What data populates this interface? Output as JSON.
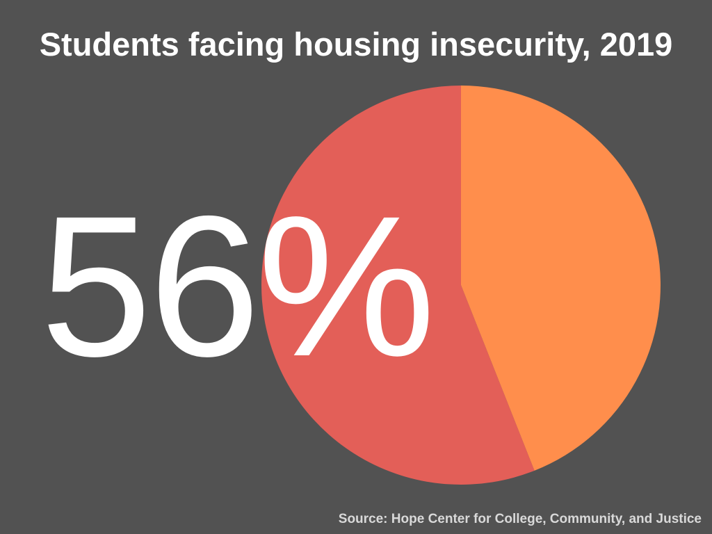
{
  "chart_data": {
    "type": "pie",
    "title": "Students facing housing insecurity, 2019",
    "highlight_label": "56%",
    "slices": [
      {
        "value": 56,
        "color": "#e35f58"
      },
      {
        "value": 44,
        "color": "#ff8e4c"
      }
    ],
    "source": "Source: Hope Center for College, Community, and Justice"
  },
  "colors": {
    "background": "#525252",
    "text": "#ffffff",
    "source_text": "#d9d9d9"
  }
}
